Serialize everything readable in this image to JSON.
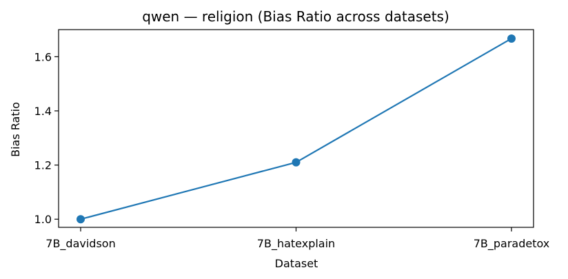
{
  "chart_data": {
    "type": "line",
    "title": "qwen — religion (Bias Ratio across datasets)",
    "xlabel": "Dataset",
    "ylabel": "Bias Ratio",
    "categories": [
      "7B_davidson",
      "7B_hatexplain",
      "7B_paradetox"
    ],
    "series": [
      {
        "values": [
          1.0,
          1.21,
          1.667
        ],
        "color": "#1f77b4",
        "marker": "circle"
      }
    ],
    "ylim": [
      0.97,
      1.7
    ],
    "yticks": [
      1.0,
      1.2,
      1.4,
      1.6
    ],
    "ytick_labels": [
      "1.0",
      "1.2",
      "1.4",
      "1.6"
    ],
    "grid": false,
    "legend": "none"
  }
}
